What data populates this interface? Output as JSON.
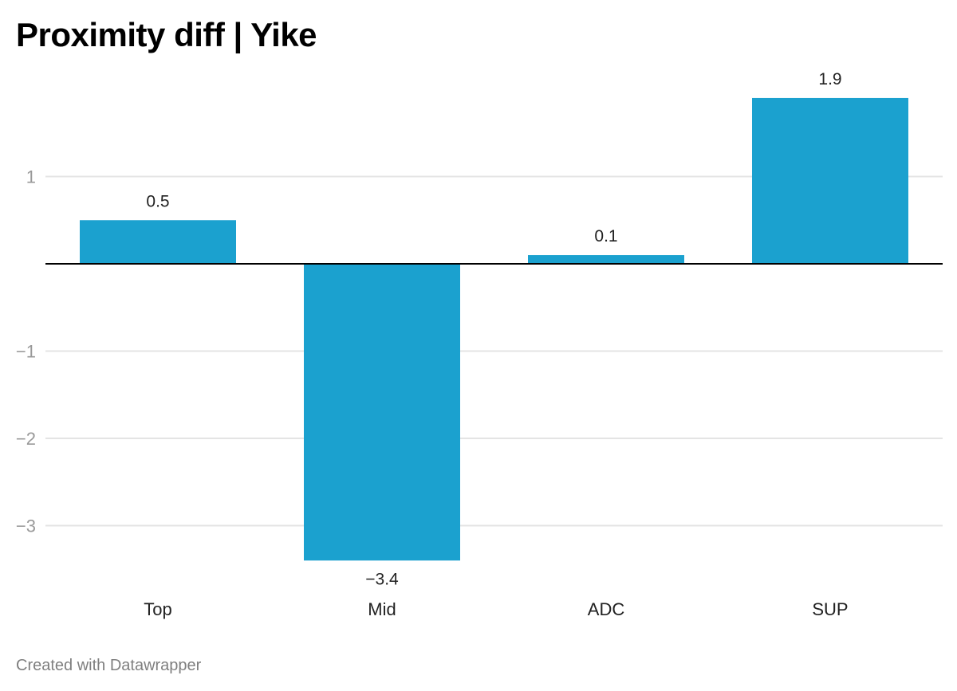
{
  "chart_data": {
    "type": "bar",
    "title": "Proximity diff | Yike",
    "categories": [
      "Top",
      "Mid",
      "ADC",
      "SUP"
    ],
    "values": [
      0.5,
      -3.4,
      0.1,
      1.9
    ],
    "value_labels": [
      "0.5",
      "−3.4",
      "0.1",
      "1.9"
    ],
    "xlabel": "",
    "ylabel": "",
    "ylim": [
      -3.4,
      1.9
    ],
    "yticks": [
      1,
      -1,
      -2,
      -3
    ],
    "ytick_labels": [
      "1",
      "−1",
      "−2",
      "−3"
    ],
    "grid": true,
    "legend": "none",
    "bar_color": "#1ba1cf",
    "grid_color": "#e4e4e4",
    "baseline_color": "#000000"
  },
  "footer": {
    "credit": "Created with Datawrapper"
  }
}
